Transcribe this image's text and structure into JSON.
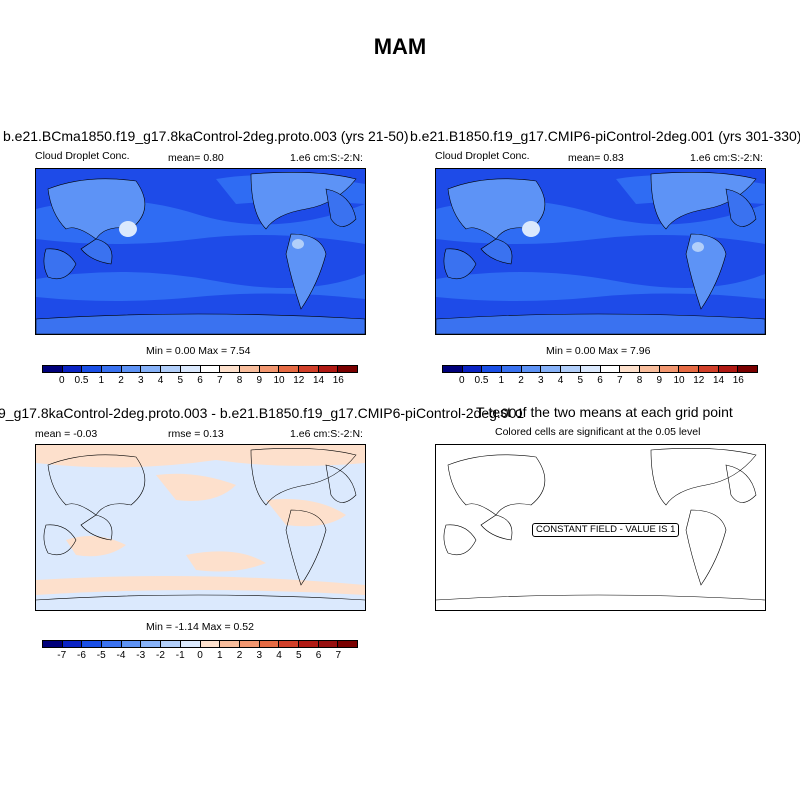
{
  "title": "MAM",
  "panels": {
    "p1": {
      "title": "b.e21.BCma1850.f19_g17.8kaControl-2deg.proto.003 (yrs 21-50)",
      "left_label": "Cloud Droplet Conc.",
      "mean_text": "mean=   0.80",
      "units": "1.e6 cm:S:-2:N:",
      "minmax": "Min =   0.00 Max =   7.54"
    },
    "p2": {
      "title": "b.e21.B1850.f19_g17.CMIP6-piControl-2deg.001 (yrs 301-330)",
      "left_label": "Cloud Droplet Conc.",
      "mean_text": "mean=   0.83",
      "units": "1.e6 cm:S:-2:N:",
      "minmax": "Min =   0.00 Max =   7.96"
    },
    "p3": {
      "title": "9_g17.8kaControl-2deg.proto.003 - b.e21.B1850.f19_g17.CMIP6-piControl-2deg.001",
      "mean_text": "mean =  -0.03",
      "rmse_text": "rmse =   0.13",
      "units": "1.e6 cm:S:-2:N:",
      "minmax": "Min =  -1.14 Max =   0.52"
    },
    "p4": {
      "title": "T-test of the two means at each grid point",
      "subtitle": "Colored cells are significant at the 0.05 level",
      "constant_field": "CONSTANT FIELD - VALUE IS 1"
    }
  },
  "colorbar_abs": {
    "labels": [
      "0",
      "0.5",
      "1",
      "2",
      "3",
      "4",
      "5",
      "6",
      "7",
      "8",
      "9",
      "10",
      "12",
      "14",
      "16"
    ],
    "colors": [
      "#00007a",
      "#0b24c4",
      "#1a4fe6",
      "#3a72f0",
      "#5e93f5",
      "#87b2f8",
      "#b2cffa",
      "#dbe9fd",
      "#ffffff",
      "#fde0cc",
      "#f8bd9c",
      "#f29770",
      "#e66b44",
      "#d1402a",
      "#b01a14",
      "#7a0000"
    ]
  },
  "colorbar_diff": {
    "labels": [
      "-7",
      "-6",
      "-5",
      "-4",
      "-3",
      "-2",
      "-1",
      "0",
      "1",
      "2",
      "3",
      "4",
      "5",
      "6",
      "7"
    ],
    "colors": [
      "#00007a",
      "#0b24c4",
      "#1a4fe6",
      "#3a72f0",
      "#5e93f5",
      "#87b2f8",
      "#b2cffa",
      "#dbe9fd",
      "#fde0cc",
      "#f8bd9c",
      "#f29770",
      "#e66b44",
      "#d1402a",
      "#b01a14",
      "#981010",
      "#7a0000"
    ]
  },
  "map_colors": {
    "base_fill": "#1e4be8",
    "mid_fill": "#2f6cf3",
    "light_fill": "#5d93f6",
    "hotspot_fill": "#dbe9fd",
    "diff_base": "#dbe9fd",
    "diff_pos": "#fde0cc"
  }
}
